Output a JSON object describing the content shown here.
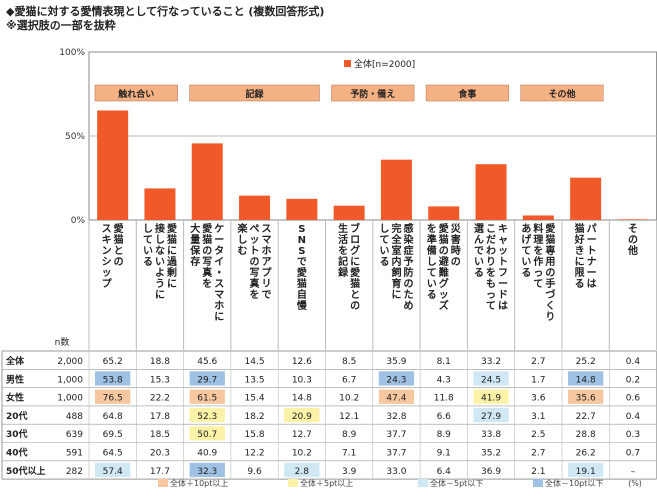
{
  "title_line1": "◆愛猫に対する愛情表現として行なっていること (複数回答形式)",
  "title_line2": "※選択肢の一部を抜粋",
  "chart_data": {
    "type": "bar",
    "ylim": [
      0,
      100
    ],
    "yticks": [
      "100%",
      "50%",
      "0%"
    ],
    "legend": "全体[n=2000]",
    "legend_position": "top-right",
    "series_color": "#f05a28",
    "groups": [
      {
        "label": "触れ合い",
        "start": 0,
        "end": 1
      },
      {
        "label": "記録",
        "start": 2,
        "end": 4
      },
      {
        "label": "予防・備え",
        "start": 5,
        "end": 6
      },
      {
        "label": "食事",
        "start": 7,
        "end": 8
      },
      {
        "label": "その他",
        "start": 9,
        "end": 10
      }
    ],
    "categories": [
      [
        "愛猫との",
        "スキンシップ"
      ],
      [
        "愛猫に過剰に",
        "接しないように",
        "している"
      ],
      [
        "ケータイ・スマホに",
        "愛猫の写真を",
        "大量保存"
      ],
      [
        "スマホアプリで",
        "ペットの写真を",
        "楽しむ"
      ],
      [
        "SNSで愛猫自慢"
      ],
      [
        "ブログに愛猫との",
        "生活を記録"
      ],
      [
        "感染症予防のため",
        "完全室内飼育に",
        "している"
      ],
      [
        "災害時の",
        "愛猫の避難グッズ",
        "を準備している"
      ],
      [
        "キャットフードは",
        "こだわりをもって",
        "選んでいる"
      ],
      [
        "愛猫専用の手づくり",
        "料理を作って",
        "あげている"
      ],
      [
        "パートナーは",
        "猫好きに限る"
      ],
      [
        "その他"
      ]
    ],
    "values": [
      65.2,
      18.8,
      45.6,
      14.5,
      12.6,
      8.5,
      35.9,
      8.1,
      33.2,
      2.7,
      25.2,
      0.4
    ],
    "table": {
      "n_header": "n数",
      "rows": [
        {
          "label": "全体",
          "n": "2,000",
          "values": [
            "65.2",
            "18.8",
            "45.6",
            "14.5",
            "12.6",
            "8.5",
            "35.9",
            "8.1",
            "33.2",
            "2.7",
            "25.2",
            "0.4"
          ],
          "marks": [
            0,
            0,
            0,
            0,
            0,
            0,
            0,
            0,
            0,
            0,
            0,
            0
          ]
        },
        {
          "label": "男性",
          "n": "1,000",
          "values": [
            "53.8",
            "15.3",
            "29.7",
            "13.5",
            "10.3",
            "6.7",
            "24.3",
            "4.3",
            "24.5",
            "1.7",
            "14.8",
            "0.2"
          ],
          "marks": [
            -10,
            0,
            -10,
            0,
            0,
            0,
            -10,
            0,
            -5,
            0,
            -10,
            0
          ]
        },
        {
          "label": "女性",
          "n": "1,000",
          "values": [
            "76.5",
            "22.2",
            "61.5",
            "15.4",
            "14.8",
            "10.2",
            "47.4",
            "11.8",
            "41.9",
            "3.6",
            "35.6",
            "0.6"
          ],
          "marks": [
            10,
            0,
            10,
            0,
            0,
            0,
            10,
            0,
            5,
            0,
            10,
            0
          ]
        },
        {
          "label": "20代",
          "n": "488",
          "values": [
            "64.8",
            "17.8",
            "52.3",
            "18.2",
            "20.9",
            "12.1",
            "32.8",
            "6.6",
            "27.9",
            "3.1",
            "22.7",
            "0.4"
          ],
          "marks": [
            0,
            0,
            5,
            0,
            5,
            0,
            0,
            0,
            -5,
            0,
            0,
            0
          ]
        },
        {
          "label": "30代",
          "n": "639",
          "values": [
            "69.5",
            "18.5",
            "50.7",
            "15.8",
            "12.7",
            "8.9",
            "37.7",
            "8.9",
            "33.8",
            "2.5",
            "28.8",
            "0.3"
          ],
          "marks": [
            0,
            0,
            5,
            0,
            0,
            0,
            0,
            0,
            0,
            0,
            0,
            0
          ]
        },
        {
          "label": "40代",
          "n": "591",
          "values": [
            "64.5",
            "20.3",
            "40.9",
            "12.2",
            "10.2",
            "7.1",
            "37.7",
            "9.1",
            "35.2",
            "2.7",
            "26.2",
            "0.7"
          ],
          "marks": [
            0,
            0,
            0,
            0,
            0,
            0,
            0,
            0,
            0,
            0,
            0,
            0
          ]
        },
        {
          "label": "50代以上",
          "n": "282",
          "values": [
            "57.4",
            "17.7",
            "32.3",
            "9.6",
            "2.8",
            "3.9",
            "33.0",
            "6.4",
            "36.9",
            "2.1",
            "19.1",
            "–"
          ],
          "marks": [
            -5,
            0,
            -10,
            0,
            -5,
            0,
            0,
            0,
            0,
            0,
            -5,
            0
          ]
        }
      ]
    },
    "table_legend": [
      {
        "label": "全体＋10pt以上",
        "color": "#f7c8a0"
      },
      {
        "label": "全体＋5pt以上",
        "color": "#fbf2a8"
      },
      {
        "label": "全体－5pt以下",
        "color": "#cfe8f4"
      },
      {
        "label": "全体－10pt以下",
        "color": "#9fc2e4"
      }
    ],
    "unit": "(%)"
  }
}
